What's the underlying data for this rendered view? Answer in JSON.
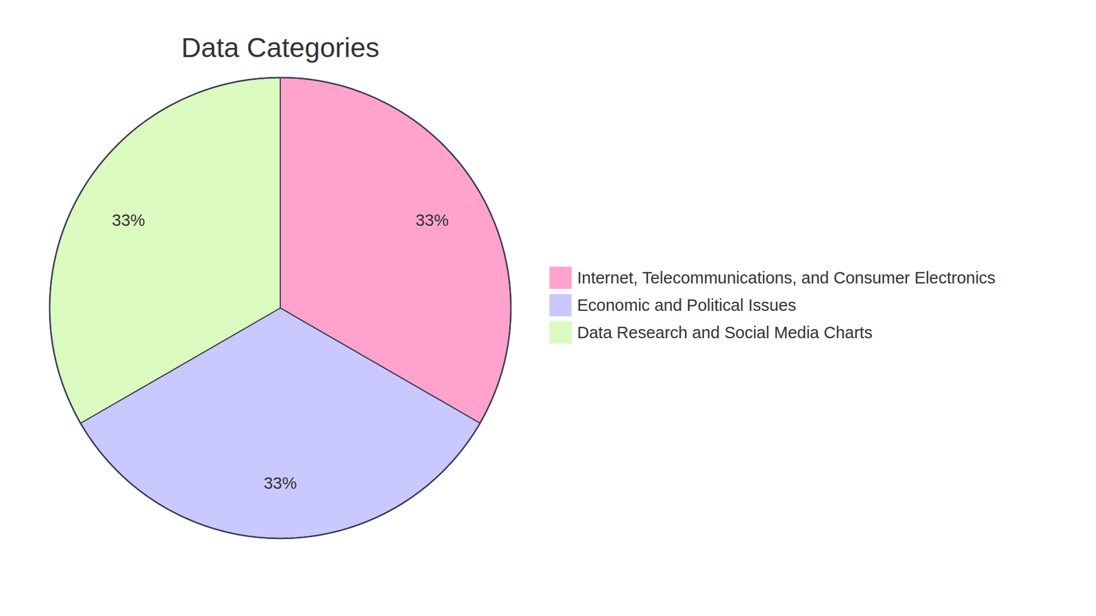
{
  "chart_data": {
    "type": "pie",
    "title": "Data Categories",
    "categories": [
      "Internet, Telecommunications, and Consumer Electronics",
      "Economic and Political Issues",
      "Data Research and Social Media Charts"
    ],
    "values": [
      33,
      33,
      33
    ],
    "value_labels": [
      "33%",
      "33%",
      "33%"
    ],
    "colors": [
      "#ffa3cd",
      "#c9c9ff",
      "#dafabf"
    ],
    "data_labels": true,
    "legend": "right"
  }
}
